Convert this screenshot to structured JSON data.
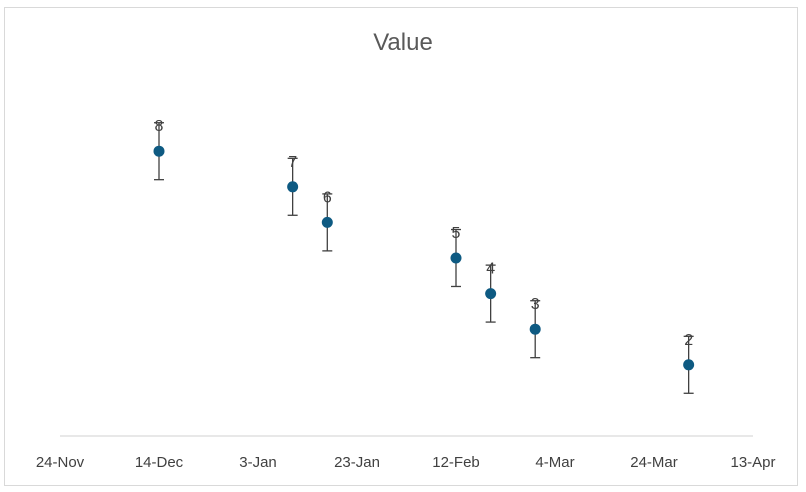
{
  "chart_data": {
    "type": "scatter",
    "title": "Value",
    "xlabel": "",
    "ylabel": "",
    "x_axis": "date",
    "xlim": [
      "2024-11-24",
      "2025-04-13"
    ],
    "xticks": [
      {
        "date": "2024-11-24",
        "label": "24-Nov"
      },
      {
        "date": "2024-12-14",
        "label": "14-Dec"
      },
      {
        "date": "2025-01-03",
        "label": "3-Jan"
      },
      {
        "date": "2025-01-23",
        "label": "23-Jan"
      },
      {
        "date": "2025-02-12",
        "label": "12-Feb"
      },
      {
        "date": "2025-03-04",
        "label": "4-Mar"
      },
      {
        "date": "2025-03-24",
        "label": "24-Mar"
      },
      {
        "date": "2025-04-13",
        "label": "13-Apr"
      }
    ],
    "ylim": [
      0,
      10
    ],
    "y_axis_visible": false,
    "grid": false,
    "legend": "none",
    "error_bar": {
      "minus": 0.8,
      "plus": 0.8
    },
    "series": [
      {
        "color": "#0e5a82",
        "points": [
          {
            "x": "2024-12-14",
            "y": 8,
            "label": "8"
          },
          {
            "x": "2025-01-10",
            "y": 7,
            "label": "7"
          },
          {
            "x": "2025-01-17",
            "y": 6,
            "label": "6"
          },
          {
            "x": "2025-02-12",
            "y": 5,
            "label": "5"
          },
          {
            "x": "2025-02-19",
            "y": 4,
            "label": "4"
          },
          {
            "x": "2025-02-28",
            "y": 3,
            "label": "3"
          },
          {
            "x": "2025-03-31",
            "y": 2,
            "label": "2"
          }
        ]
      }
    ]
  }
}
